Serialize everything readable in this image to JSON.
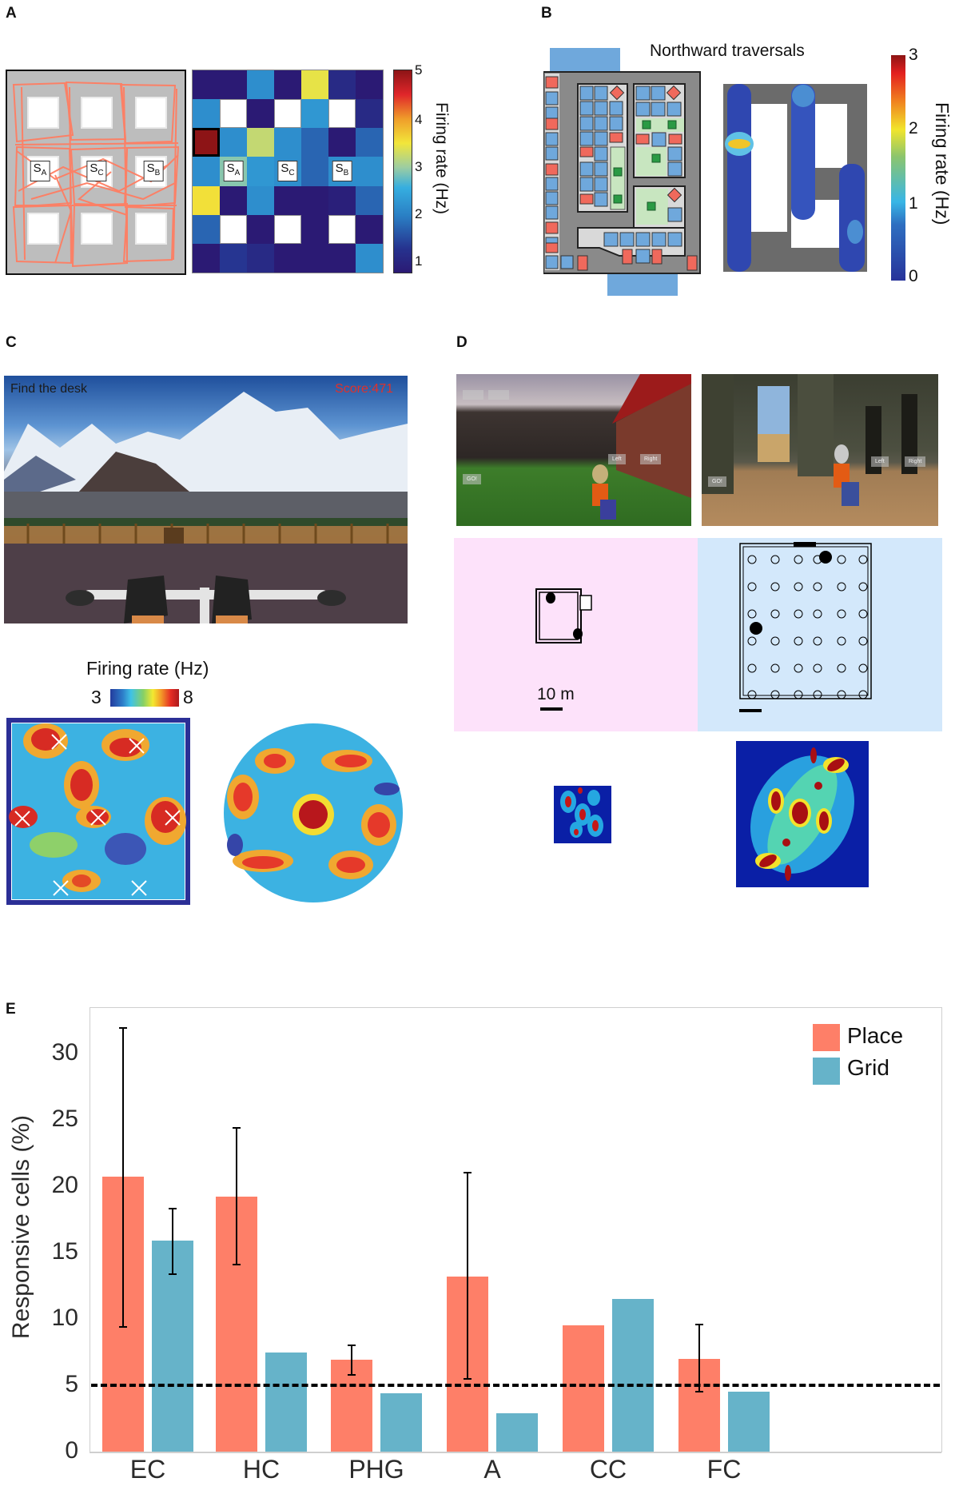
{
  "panels": {
    "A": {
      "letter": "A",
      "maze_labels": [
        {
          "main": "S",
          "sub": "A"
        },
        {
          "main": "S",
          "sub": "C"
        },
        {
          "main": "S",
          "sub": "B"
        }
      ],
      "heatmap": {
        "rows": 7,
        "cols": 7,
        "cells": [
          [
            1.0,
            1.0,
            2.3,
            1.0,
            3.5,
            1.3,
            1.0
          ],
          [
            2.3,
            null,
            1.0,
            null,
            2.4,
            null,
            1.3
          ],
          [
            5.0,
            2.3,
            3.3,
            2.3,
            1.9,
            1.0,
            1.9
          ],
          [
            2.3,
            3.0,
            2.4,
            2.3,
            1.9,
            2.3,
            2.3
          ],
          [
            3.6,
            1.0,
            2.3,
            1.0,
            1.0,
            1.1,
            1.9
          ],
          [
            1.9,
            null,
            1.0,
            null,
            1.0,
            null,
            1.0
          ],
          [
            1.0,
            1.5,
            1.3,
            1.0,
            1.0,
            1.0,
            2.3
          ]
        ],
        "highlighted_cell": [
          2,
          0
        ],
        "labels": [
          {
            "row": 3,
            "col": 1,
            "main": "S",
            "sub": "A"
          },
          {
            "row": 3,
            "col": 3,
            "main": "S",
            "sub": "C"
          },
          {
            "row": 3,
            "col": 5,
            "main": "S",
            "sub": "B"
          }
        ]
      },
      "colorbar": {
        "ticks": [
          "5",
          "4",
          "3",
          "2",
          "1"
        ],
        "label": "Firing rate (Hz)",
        "min": 1,
        "max": 5
      }
    },
    "B": {
      "letter": "B",
      "map_title": "Northward traversals",
      "colorbar": {
        "ticks": [
          "3",
          "2",
          "1",
          "0"
        ],
        "label": "Firing rate (Hz)",
        "min": 0,
        "max": 3
      }
    },
    "C": {
      "letter": "C",
      "hud_left": "Find the desk",
      "hud_right": "Score:471",
      "colorbar": {
        "label": "Firing rate (Hz)",
        "min_label": "3",
        "max_label": "8"
      }
    },
    "D": {
      "letter": "D",
      "scale_label": "10 m",
      "game_buttons": {
        "left": "Left",
        "right": "Right",
        "go": "GO!"
      }
    },
    "E": {
      "letter": "E"
    }
  },
  "chart_data": {
    "type": "bar",
    "title": "",
    "xlabel": "",
    "ylabel": "Responsive cells (%)",
    "ylim": [
      0,
      33
    ],
    "yticks": [
      0,
      5,
      10,
      15,
      20,
      25,
      30
    ],
    "categories": [
      "EC",
      "HC",
      "PHG",
      "A",
      "CC",
      "FC"
    ],
    "series": [
      {
        "name": "Place",
        "color": "#fe7f68",
        "values": [
          20.7,
          19.2,
          6.9,
          13.2,
          9.5,
          7.0
        ],
        "error_low": [
          9.4,
          14.1,
          5.8,
          5.5,
          null,
          4.5
        ],
        "error_high": [
          31.9,
          24.4,
          8.0,
          21.0,
          null,
          9.6
        ]
      },
      {
        "name": "Grid",
        "color": "#66b3c9",
        "values": [
          15.9,
          7.5,
          4.4,
          2.9,
          11.5,
          4.5
        ],
        "error_low": [
          13.4,
          null,
          null,
          null,
          null,
          null
        ],
        "error_high": [
          18.3,
          null,
          null,
          null,
          null,
          null
        ]
      }
    ],
    "reference_line": {
      "y": 5,
      "style": "dashed",
      "color": "#000000"
    },
    "legend": {
      "position": "upper right",
      "entries": [
        "Place",
        "Grid"
      ]
    },
    "grid": false
  }
}
